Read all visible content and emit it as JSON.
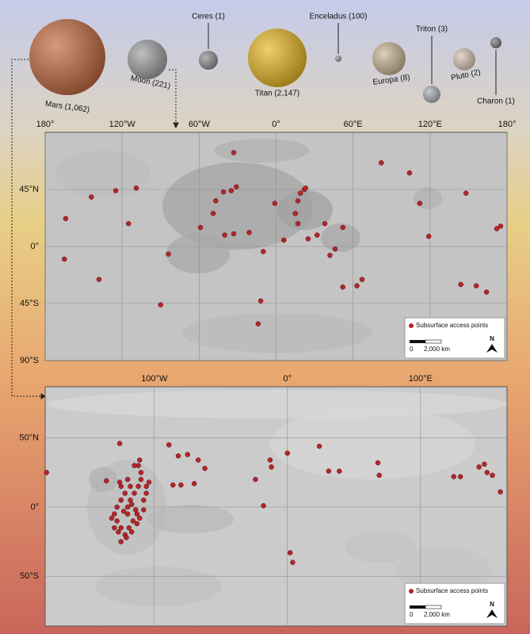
{
  "bodies": [
    {
      "label": "Mars (1,062)",
      "color": "#c0643a"
    },
    {
      "label": "Moon (221)",
      "color": "#9a9d9e"
    },
    {
      "label": "Ceres (1)",
      "color": "#8a8d8c"
    },
    {
      "label": "Titan (2,147)",
      "color": "#e5b51d"
    },
    {
      "label": "Enceladus (100)",
      "color": "#8d9095"
    },
    {
      "label": "Europa (8)",
      "color": "#c9b48f"
    },
    {
      "label": "Triton (3)",
      "color": "#a7acb4"
    },
    {
      "label": "Pluto (2)",
      "color": "#d9c3b3"
    },
    {
      "label": "Charon (1)",
      "color": "#7a7672"
    }
  ],
  "moon_map": {
    "xlim": [
      -180,
      180
    ],
    "ylim": [
      -90,
      90
    ],
    "xticks": [
      {
        "value": -180,
        "label": "180°"
      },
      {
        "value": -120,
        "label": "120°W"
      },
      {
        "value": -60,
        "label": "60°W"
      },
      {
        "value": 0,
        "label": "0°"
      },
      {
        "value": 60,
        "label": "60°E"
      },
      {
        "value": 120,
        "label": "120°E"
      },
      {
        "value": 180,
        "label": "180°"
      }
    ],
    "yticks": [
      {
        "value": 45,
        "label": "45°N"
      },
      {
        "value": 0,
        "label": "0°"
      },
      {
        "value": -45,
        "label": "45°S"
      },
      {
        "value": -90,
        "label": "90°S"
      }
    ],
    "marker_color": "#b3262a",
    "lon": [
      -164,
      -165,
      -144,
      -125,
      -109,
      -115,
      -138,
      -84,
      -90,
      -59,
      -49,
      -47,
      -41,
      -35,
      -31,
      -33,
      -40,
      -33,
      -21,
      -10,
      -12,
      -14,
      -1,
      15,
      17,
      19,
      22,
      23,
      6,
      17,
      25,
      32,
      38,
      42,
      46,
      52,
      52,
      63,
      67,
      82,
      104,
      112,
      119,
      148,
      144,
      156,
      164,
      172,
      175
    ],
    "lat": [
      22,
      -10,
      39,
      44,
      46,
      18,
      -26,
      -6,
      -46,
      15,
      26,
      36,
      43,
      44,
      47,
      74,
      9,
      10,
      11,
      -4,
      -43,
      -61,
      34,
      26,
      36,
      42,
      45,
      46,
      5,
      18,
      6,
      9,
      18,
      -7,
      -2,
      15,
      -32,
      -31,
      -26,
      66,
      58,
      34,
      8,
      42,
      -30,
      -31,
      -36,
      14,
      16
    ],
    "legend": "Subsurface access points",
    "scale_zero": "0",
    "scale_label": "2,000 km",
    "north": "N"
  },
  "mars_map": {
    "xlim": [
      -182,
      165
    ],
    "ylim": [
      -86,
      87
    ],
    "xticks": [
      {
        "value": -100,
        "label": "100°W"
      },
      {
        "value": 0,
        "label": "0°"
      },
      {
        "value": 100,
        "label": "100°E"
      }
    ],
    "yticks": [
      {
        "value": 50,
        "label": "50°N"
      },
      {
        "value": 0,
        "label": "0°"
      },
      {
        "value": -50,
        "label": "50°S"
      }
    ],
    "marker_color": "#b3262a",
    "lon": [
      -181,
      -126,
      -111,
      -89,
      -82,
      -75,
      -67,
      -62,
      -70,
      -80,
      -86,
      -24,
      -18,
      -13,
      -12,
      0,
      24,
      31,
      39,
      68,
      69,
      125,
      130,
      144,
      148,
      150,
      154,
      160,
      2,
      4,
      -120,
      -118,
      -115,
      -112,
      -110,
      -113,
      -116,
      -119,
      -122,
      -125,
      -128,
      -130,
      -128,
      -125,
      -122,
      -108,
      -106,
      -108,
      -111,
      -125,
      -130,
      -132,
      -120,
      -123,
      -117,
      -114,
      -110,
      -112,
      -120,
      -118,
      -125,
      -136,
      -126,
      -115,
      -106,
      -104,
      -121,
      -117,
      -113,
      -127
    ],
    "lat": [
      25,
      46,
      34,
      45,
      37,
      38,
      34,
      28,
      17,
      16,
      16,
      20,
      1,
      34,
      29,
      39,
      44,
      26,
      26,
      32,
      23,
      22,
      22,
      29,
      31,
      25,
      23,
      11,
      -33,
      -40,
      0,
      5,
      10,
      15,
      20,
      -5,
      -10,
      -15,
      -20,
      -25,
      -10,
      -5,
      0,
      5,
      10,
      5,
      10,
      -2,
      -8,
      -15,
      -15,
      -8,
      -5,
      -3,
      2,
      -2,
      25,
      30,
      20,
      15,
      15,
      19,
      18,
      30,
      15,
      18,
      -22,
      -18,
      -12,
      -18
    ],
    "legend": "Subsurface access points",
    "scale_zero": "0",
    "scale_label": "2,000 km",
    "north": "N"
  }
}
